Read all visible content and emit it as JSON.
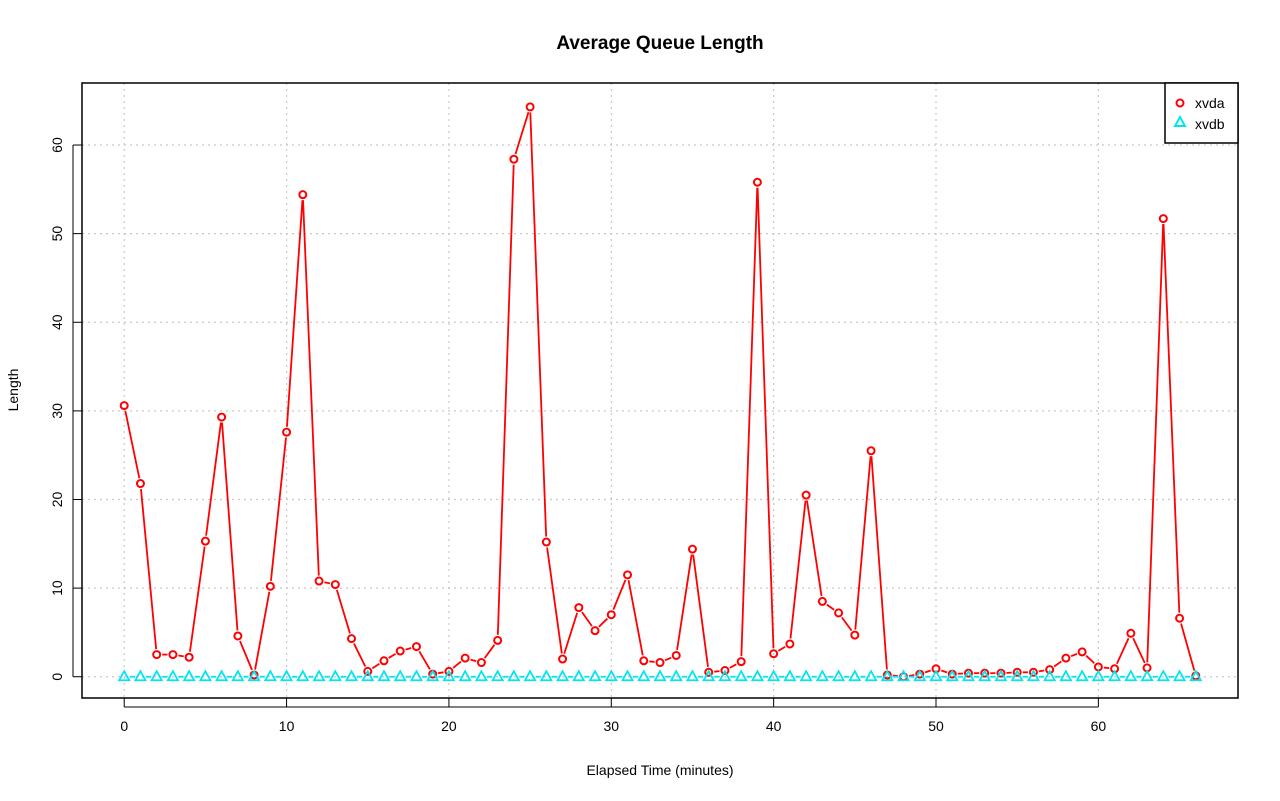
{
  "chart_data": {
    "type": "line",
    "title": "Average Queue Length",
    "xlabel": "Elapsed Time (minutes)",
    "ylabel": "Length",
    "xlim": [
      -2.6,
      68.6
    ],
    "ylim": [
      -2.4,
      67.0
    ],
    "x_ticks": [
      0,
      10,
      20,
      30,
      40,
      50,
      60
    ],
    "y_ticks": [
      0,
      10,
      20,
      30,
      40,
      50,
      60
    ],
    "grid": true,
    "legend": "top-right",
    "x": [
      0,
      1,
      2,
      3,
      4,
      5,
      6,
      7,
      8,
      9,
      10,
      11,
      12,
      13,
      14,
      15,
      16,
      17,
      18,
      19,
      20,
      21,
      22,
      23,
      24,
      25,
      26,
      27,
      28,
      29,
      30,
      31,
      32,
      33,
      34,
      35,
      36,
      37,
      38,
      39,
      40,
      41,
      42,
      43,
      44,
      45,
      46,
      47,
      48,
      49,
      50,
      51,
      52,
      53,
      54,
      55,
      56,
      57,
      58,
      59,
      60,
      61,
      62,
      63,
      64,
      65,
      66
    ],
    "series": [
      {
        "name": "xvda",
        "color": "#ff0000",
        "marker": "circle",
        "values": [
          30.6,
          21.8,
          2.5,
          2.5,
          2.2,
          15.3,
          29.3,
          4.6,
          0.2,
          10.2,
          27.6,
          54.4,
          10.8,
          10.4,
          4.3,
          0.6,
          1.8,
          2.9,
          3.4,
          0.3,
          0.6,
          2.1,
          1.6,
          4.1,
          58.4,
          64.3,
          15.2,
          2.0,
          7.8,
          5.2,
          7.0,
          11.5,
          1.8,
          1.6,
          2.4,
          14.4,
          0.5,
          0.7,
          1.7,
          55.8,
          2.6,
          3.7,
          20.5,
          8.5,
          7.2,
          4.7,
          25.5,
          0.2,
          0.0,
          0.3,
          0.9,
          0.3,
          0.4,
          0.4,
          0.4,
          0.5,
          0.5,
          0.8,
          2.1,
          2.8,
          1.1,
          0.9,
          4.9,
          1.0,
          51.7,
          6.6,
          0.1
        ]
      },
      {
        "name": "xvdb",
        "color": "#00e5ee",
        "marker": "triangle",
        "values": [
          0,
          0,
          0,
          0,
          0,
          0,
          0,
          0,
          0,
          0,
          0,
          0,
          0,
          0,
          0,
          0,
          0,
          0,
          0,
          0,
          0,
          0,
          0,
          0,
          0,
          0,
          0,
          0,
          0,
          0,
          0,
          0,
          0,
          0,
          0,
          0,
          0,
          0,
          0,
          0,
          0,
          0,
          0,
          0,
          0,
          0,
          0,
          0,
          0,
          0,
          0,
          0,
          0,
          0,
          0,
          0,
          0,
          0,
          0,
          0,
          0,
          0,
          0,
          0,
          0,
          0,
          0
        ]
      }
    ]
  }
}
